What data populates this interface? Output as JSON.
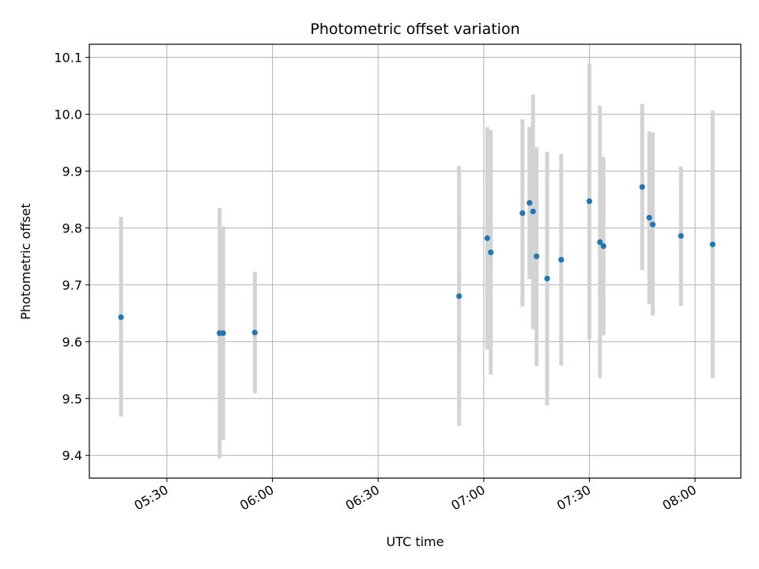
{
  "chart_data": {
    "type": "scatter",
    "title": "Photometric offset variation",
    "xlabel": "UTC time",
    "ylabel": "Photometric offset",
    "x_axis_kind": "time",
    "xlim": [
      "05:08",
      "08:13"
    ],
    "ylim": [
      9.36,
      10.123
    ],
    "x_ticks": [
      "05:30",
      "06:00",
      "06:30",
      "07:00",
      "07:30",
      "08:00"
    ],
    "y_ticks": [
      9.4,
      9.5,
      9.6,
      9.7,
      9.8,
      9.9,
      10.0,
      10.1
    ],
    "y_tick_labels": [
      "9.4",
      "9.5",
      "9.6",
      "9.7",
      "9.8",
      "9.9",
      "10.0",
      "10.1"
    ],
    "grid": true,
    "colors": {
      "marker": "#1f77b4",
      "errorbar": "#d3d3d3",
      "grid": "#b0b0b0"
    },
    "points": [
      {
        "x": "05:17",
        "y": 9.643,
        "lo": 9.468,
        "hi": 9.819
      },
      {
        "x": "05:45",
        "y": 9.615,
        "lo": 9.395,
        "hi": 9.835
      },
      {
        "x": "05:46",
        "y": 9.615,
        "lo": 9.427,
        "hi": 9.803
      },
      {
        "x": "05:55",
        "y": 9.616,
        "lo": 9.509,
        "hi": 9.723
      },
      {
        "x": "06:53",
        "y": 9.68,
        "lo": 9.452,
        "hi": 9.909
      },
      {
        "x": "07:01",
        "y": 9.782,
        "lo": 9.586,
        "hi": 9.977
      },
      {
        "x": "07:02",
        "y": 9.757,
        "lo": 9.542,
        "hi": 9.972
      },
      {
        "x": "07:11",
        "y": 9.826,
        "lo": 9.662,
        "hi": 9.991
      },
      {
        "x": "07:13",
        "y": 9.844,
        "lo": 9.71,
        "hi": 9.978
      },
      {
        "x": "07:14",
        "y": 9.829,
        "lo": 9.622,
        "hi": 10.035
      },
      {
        "x": "07:15",
        "y": 9.75,
        "lo": 9.557,
        "hi": 9.942
      },
      {
        "x": "07:18",
        "y": 9.711,
        "lo": 9.488,
        "hi": 9.934
      },
      {
        "x": "07:22",
        "y": 9.744,
        "lo": 9.558,
        "hi": 9.93
      },
      {
        "x": "07:30",
        "y": 9.847,
        "lo": 9.604,
        "hi": 10.089
      },
      {
        "x": "07:33",
        "y": 9.775,
        "lo": 9.536,
        "hi": 10.015
      },
      {
        "x": "07:34",
        "y": 9.768,
        "lo": 9.611,
        "hi": 9.925
      },
      {
        "x": "07:45",
        "y": 9.872,
        "lo": 9.726,
        "hi": 10.018
      },
      {
        "x": "07:47",
        "y": 9.818,
        "lo": 9.666,
        "hi": 9.97
      },
      {
        "x": "07:48",
        "y": 9.806,
        "lo": 9.646,
        "hi": 9.968
      },
      {
        "x": "07:56",
        "y": 9.786,
        "lo": 9.663,
        "hi": 9.908
      },
      {
        "x": "08:05",
        "y": 9.771,
        "lo": 9.536,
        "hi": 10.006
      }
    ]
  }
}
